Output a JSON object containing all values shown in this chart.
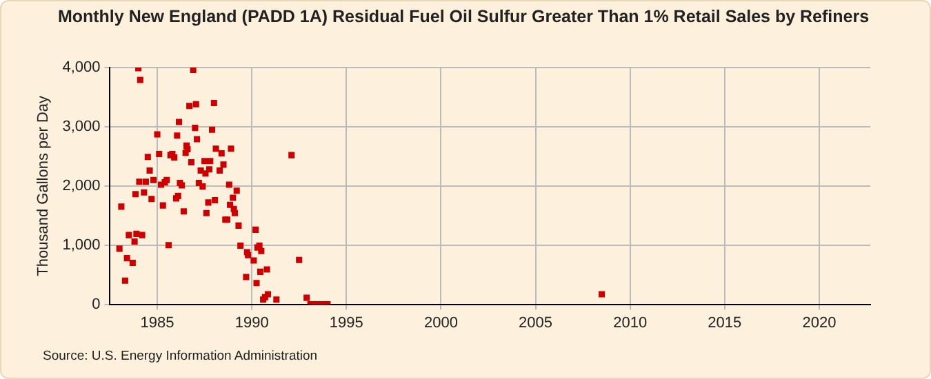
{
  "chart_data": {
    "type": "scatter",
    "title": "Monthly New England (PADD 1A) Residual Fuel Oil Sulfur Greater Than 1% Retail Sales by Refiners",
    "ylabel": "Thousand Gallons per Day",
    "annotations": [
      "Source: U.S. Energy Information Administration"
    ],
    "xlim": [
      1982.5,
      2022.7
    ],
    "xticks": [
      1985,
      1990,
      1995,
      2000,
      2005,
      2010,
      2015,
      2020
    ],
    "ylim": [
      0,
      4000
    ],
    "yticks": [
      0,
      {
        "value": 1000,
        "label": "1,000"
      },
      {
        "value": 2000,
        "label": "2,000"
      },
      {
        "value": 3000,
        "label": "3,000"
      },
      {
        "value": 4000,
        "label": "4,000"
      }
    ],
    "grid": true,
    "legend": false,
    "marker": "square",
    "series": [
      {
        "color": "#cc0000",
        "x": [
          1983.0,
          1983.1,
          1983.3,
          1983.4,
          1983.5,
          1983.7,
          1983.8,
          1983.85,
          1983.9,
          1984.0,
          1984.05,
          1984.1,
          1984.2,
          1984.3,
          1984.4,
          1984.5,
          1984.6,
          1984.7,
          1984.8,
          1985.0,
          1985.1,
          1985.2,
          1985.3,
          1985.4,
          1985.5,
          1985.6,
          1985.7,
          1985.8,
          1985.9,
          1986.0,
          1986.05,
          1986.1,
          1986.15,
          1986.2,
          1986.3,
          1986.4,
          1986.5,
          1986.55,
          1986.6,
          1986.7,
          1986.8,
          1986.9,
          1987.0,
          1987.05,
          1987.1,
          1987.2,
          1987.3,
          1987.4,
          1987.5,
          1987.55,
          1987.6,
          1987.7,
          1987.75,
          1987.8,
          1987.9,
          1988.0,
          1988.05,
          1988.1,
          1988.3,
          1988.4,
          1988.5,
          1988.6,
          1988.7,
          1988.8,
          1988.85,
          1988.9,
          1989.0,
          1989.05,
          1989.1,
          1989.2,
          1989.3,
          1989.4,
          1989.7,
          1989.75,
          1989.8,
          1990.1,
          1990.2,
          1990.25,
          1990.3,
          1990.4,
          1990.45,
          1990.5,
          1990.6,
          1990.7,
          1990.8,
          1990.85,
          1991.3,
          1992.1,
          1992.5,
          1992.9,
          1993.1,
          1993.2,
          1993.3,
          1993.4,
          1993.5,
          1993.6,
          1993.7,
          1993.8,
          1993.9,
          1994.0,
          2008.5
        ],
        "values": [
          940,
          1650,
          400,
          780,
          1170,
          700,
          1060,
          1860,
          1190,
          3990,
          2070,
          3790,
          1170,
          1890,
          2070,
          2490,
          2260,
          1780,
          2100,
          2870,
          2540,
          2020,
          1670,
          2060,
          2100,
          1000,
          2520,
          2540,
          2480,
          1790,
          2850,
          1830,
          3080,
          2050,
          2010,
          1570,
          2560,
          2680,
          2620,
          3350,
          2400,
          3960,
          2980,
          3380,
          2790,
          2050,
          2260,
          1990,
          2420,
          2210,
          1540,
          1720,
          2280,
          2420,
          2950,
          3400,
          1760,
          2630,
          2260,
          2550,
          2360,
          1430,
          1430,
          2020,
          1680,
          2630,
          1800,
          1610,
          1540,
          1920,
          1330,
          990,
          460,
          880,
          830,
          740,
          1260,
          360,
          960,
          990,
          550,
          900,
          80,
          120,
          590,
          170,
          80,
          2520,
          750,
          110,
          0,
          0,
          0,
          0,
          0,
          0,
          0,
          0,
          0,
          0,
          170
        ]
      }
    ]
  }
}
